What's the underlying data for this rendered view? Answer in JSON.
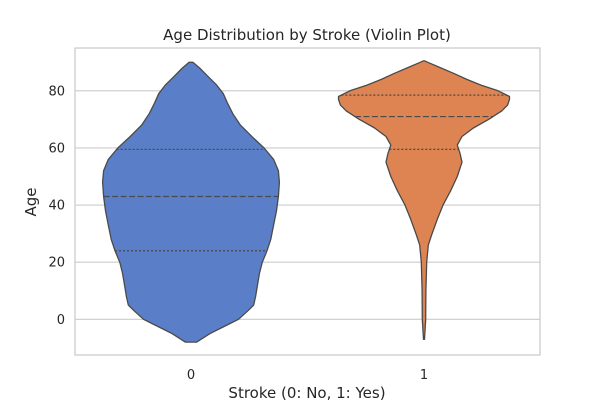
{
  "chart_data": {
    "type": "violin",
    "title": "Age Distribution by Stroke (Violin Plot)",
    "xlabel": "Stroke (0: No, 1: Yes)",
    "ylabel": "Age",
    "categories": [
      "0",
      "1"
    ],
    "ylim": [
      -12.5,
      95.0
    ],
    "yticks": [
      0,
      20,
      40,
      60,
      80
    ],
    "grid": "horizontal",
    "inner": "quartile",
    "series": [
      {
        "category": "0",
        "color": "#5A7FC8",
        "range": [
          -8.0,
          90.0
        ],
        "quartiles": [
          24.0,
          43.0,
          59.5
        ],
        "density": [
          [
            -8,
            0.06
          ],
          [
            -5,
            0.2
          ],
          [
            -2,
            0.38
          ],
          [
            0,
            0.5
          ],
          [
            3,
            0.6
          ],
          [
            5,
            0.66
          ],
          [
            8,
            0.68
          ],
          [
            12,
            0.7
          ],
          [
            16,
            0.72
          ],
          [
            20,
            0.75
          ],
          [
            24,
            0.8
          ],
          [
            28,
            0.84
          ],
          [
            33,
            0.87
          ],
          [
            38,
            0.9
          ],
          [
            43,
            0.92
          ],
          [
            48,
            0.93
          ],
          [
            52,
            0.92
          ],
          [
            56,
            0.87
          ],
          [
            60,
            0.77
          ],
          [
            64,
            0.64
          ],
          [
            68,
            0.52
          ],
          [
            72,
            0.44
          ],
          [
            76,
            0.38
          ],
          [
            79,
            0.34
          ],
          [
            82,
            0.27
          ],
          [
            85,
            0.18
          ],
          [
            88,
            0.09
          ],
          [
            90,
            0.02
          ]
        ]
      },
      {
        "category": "1",
        "color": "#DD8452",
        "range": [
          -7.0,
          90.5
        ],
        "quartiles": [
          59.5,
          71.0,
          78.5
        ],
        "density": [
          [
            -7,
            0.005
          ],
          [
            0,
            0.018
          ],
          [
            10,
            0.02
          ],
          [
            20,
            0.028
          ],
          [
            26,
            0.045
          ],
          [
            30,
            0.085
          ],
          [
            35,
            0.14
          ],
          [
            40,
            0.2
          ],
          [
            45,
            0.28
          ],
          [
            50,
            0.35
          ],
          [
            55,
            0.4
          ],
          [
            58,
            0.38
          ],
          [
            61,
            0.35
          ],
          [
            64,
            0.4
          ],
          [
            67,
            0.52
          ],
          [
            70,
            0.68
          ],
          [
            73,
            0.82
          ],
          [
            75,
            0.88
          ],
          [
            77,
            0.9
          ],
          [
            78,
            0.9
          ],
          [
            80,
            0.78
          ],
          [
            82,
            0.6
          ],
          [
            84,
            0.45
          ],
          [
            86,
            0.32
          ],
          [
            88,
            0.18
          ],
          [
            90,
            0.04
          ],
          [
            90.5,
            0.01
          ]
        ]
      }
    ]
  },
  "style": {
    "grid_color": "#CCCCCC",
    "frame_color": "#CCCCCC",
    "edge_color": "#4a4a4a"
  }
}
